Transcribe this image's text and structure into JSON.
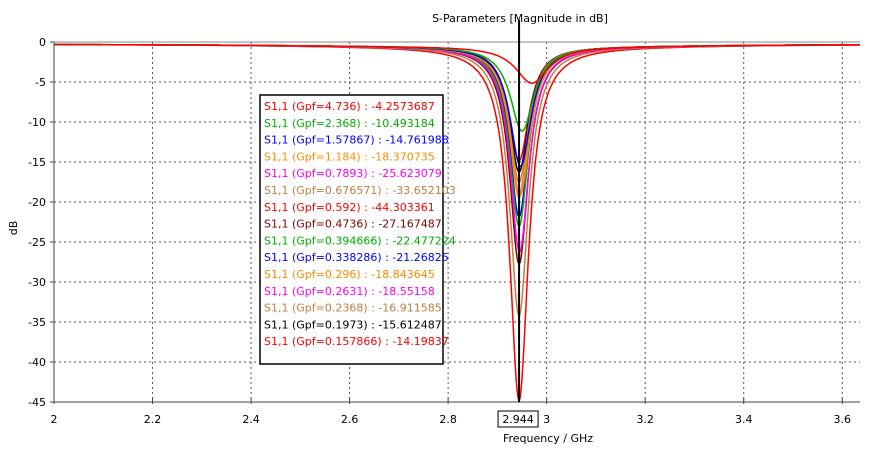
{
  "chart_data": {
    "type": "line",
    "title": "S-Parameters [Magnitude in dB]",
    "xlabel": "Frequency / GHz",
    "ylabel": "dB",
    "xlim": [
      2,
      3.636
    ],
    "ylim": [
      -45,
      0
    ],
    "xticks": [
      "2",
      "2.2",
      "2.4",
      "2.6",
      "2.8",
      "3",
      "3.2",
      "3.4",
      "3.6"
    ],
    "xtick_values": [
      2,
      2.2,
      2.4,
      2.6,
      2.8,
      3,
      3.2,
      3.4,
      3.6
    ],
    "yticks": [
      "0",
      "-5",
      "-10",
      "-15",
      "-20",
      "-25",
      "-30",
      "-35",
      "-40",
      "-45"
    ],
    "ytick_values": [
      0,
      -5,
      -10,
      -15,
      -20,
      -25,
      -30,
      -35,
      -40,
      -45
    ],
    "grid": true,
    "marker": {
      "x": 2.944,
      "label": "2.944"
    },
    "legend_position": "center-left",
    "series": [
      {
        "name": "S1,1 (Gpf=4.736) : -4.2573687",
        "color": "#ff0000",
        "min": -4.6,
        "f0": 2.97,
        "width": 0.14
      },
      {
        "name": "S1,1 (Gpf=2.368) : -10.493184",
        "color": "#00b000",
        "min": -10.6,
        "f0": 2.95,
        "width": 0.1
      },
      {
        "name": "S1,1 (Gpf=1.57867) : -14.761988",
        "color": "#0000ff",
        "min": -15.0,
        "f0": 2.947,
        "width": 0.09
      },
      {
        "name": "S1,1 (Gpf=1.184) : -18.370735",
        "color": "#ff8c00",
        "min": -18.6,
        "f0": 2.946,
        "width": 0.085
      },
      {
        "name": "S1,1 (Gpf=0.7893) : -25.623079",
        "color": "#ff00ff",
        "min": -25.7,
        "f0": 2.945,
        "width": 0.08
      },
      {
        "name": "S1,1 (Gpf=0.676571) : -33.652103",
        "color": "#c08040",
        "min": -33.7,
        "f0": 2.944,
        "width": 0.08
      },
      {
        "name": "S1,1 (Gpf=0.592) : -44.303361",
        "color": "#ff0000",
        "min": -44.3,
        "f0": 2.944,
        "width": 0.08
      },
      {
        "name": "S1,1 (Gpf=0.4736) : -27.167487",
        "color": "#800000",
        "min": -27.2,
        "f0": 2.944,
        "width": 0.08
      },
      {
        "name": "S1,1 (Gpf=0.394666) : -22.477224",
        "color": "#00b000",
        "min": -22.5,
        "f0": 2.944,
        "width": 0.08
      },
      {
        "name": "S1,1 (Gpf=0.338286) : -21.26825",
        "color": "#0000ff",
        "min": -21.3,
        "f0": 2.944,
        "width": 0.08
      },
      {
        "name": "S1,1 (Gpf=0.296) : -18.843645",
        "color": "#ff8c00",
        "min": -18.9,
        "f0": 2.944,
        "width": 0.08
      },
      {
        "name": "S1,1 (Gpf=0.2631) : -18.55158",
        "color": "#ff00ff",
        "min": -18.6,
        "f0": 2.944,
        "width": 0.08
      },
      {
        "name": "S1,1 (Gpf=0.2368) : -16.911585",
        "color": "#c08040",
        "min": -17.0,
        "f0": 2.944,
        "width": 0.08
      },
      {
        "name": "S1,1 (Gpf=0.1973) : -15.612487",
        "color": "#000000",
        "min": -15.7,
        "f0": 2.944,
        "width": 0.082
      },
      {
        "name": "S1,1 (Gpf=0.157866) : -14.19837",
        "color": "#ff0000",
        "min": -14.3,
        "f0": 2.944,
        "width": 0.085
      }
    ]
  }
}
